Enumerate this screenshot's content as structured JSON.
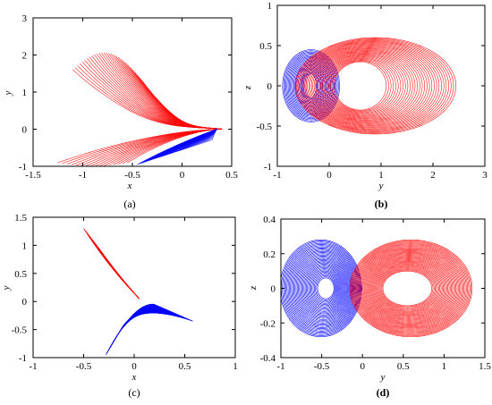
{
  "colors": {
    "red_series": "#ff0000",
    "blue_series": "#0000ff",
    "axis": "#000000"
  },
  "chart_data": [
    {
      "id": "a",
      "type": "line",
      "panel_label": "(a)",
      "xlabel": "x",
      "ylabel": "y",
      "xlim": [
        -1.5,
        0.5
      ],
      "ylim": [
        -1,
        3
      ],
      "xticks": [
        -1.5,
        -1,
        -0.5,
        0,
        0.5
      ],
      "yticks": [
        -1,
        0,
        1,
        2,
        3
      ],
      "xtick_labels": [
        "-1.5",
        "-1",
        "-0.5",
        "0",
        "0.5"
      ],
      "ytick_labels": [
        "-1",
        "0",
        "1",
        "2",
        "3"
      ],
      "grid": false,
      "series": [
        {
          "color": "red",
          "values": {
            "start_x_range": [
              -1.1,
              -0.4
            ],
            "start_y_top": [
              1.6,
              2.2
            ],
            "end_point": [
              0.4,
              0.0
            ],
            "lower_fan_y_min": -1.0
          }
        },
        {
          "color": "blue",
          "values": {
            "x_range": [
              -0.45,
              0.4
            ],
            "y_range": [
              -1.0,
              0.0
            ]
          }
        }
      ]
    },
    {
      "id": "b",
      "type": "line",
      "panel_label": "(b)",
      "xlabel": "y",
      "ylabel": "z",
      "xlim": [
        -1,
        3
      ],
      "ylim": [
        -1,
        1
      ],
      "xticks": [
        -1,
        0,
        1,
        2,
        3
      ],
      "yticks": [
        -1,
        -0.5,
        0,
        0.5,
        1
      ],
      "xtick_labels": [
        "-1",
        "0",
        "1",
        "2",
        "3"
      ],
      "ytick_labels": [
        "-1",
        "-0.5",
        "0",
        "0.5",
        "1"
      ],
      "grid": false,
      "series": [
        {
          "color": "blue",
          "values": {
            "center": [
              -0.35,
              0.0
            ],
            "outer_radius": [
              0.55,
              0.45
            ],
            "inner_radius": [
              0.1,
              0.15
            ]
          }
        },
        {
          "color": "red",
          "values": {
            "center": [
              0.6,
              0.0
            ],
            "outer_radius": [
              1.55,
              0.6
            ],
            "inner_radius": [
              0.5,
              0.3
            ]
          }
        }
      ]
    },
    {
      "id": "c",
      "type": "line",
      "panel_label": "(c)",
      "xlabel": "x",
      "ylabel": "y",
      "xlim": [
        -1,
        1
      ],
      "ylim": [
        -1,
        1.5
      ],
      "xticks": [
        -1,
        -0.5,
        0,
        0.5,
        1
      ],
      "yticks": [
        -1,
        -0.5,
        0,
        0.5,
        1,
        1.5
      ],
      "xtick_labels": [
        "-1",
        "-0.5",
        "0",
        "0.5",
        "1"
      ],
      "ytick_labels": [
        "-1",
        "-0.5",
        "0",
        "0.5",
        "1",
        "1.5"
      ],
      "grid": false,
      "series": [
        {
          "color": "red",
          "values": {
            "start_x_range": [
              -0.5,
              -0.4
            ],
            "start_y": [
              1.3,
              1.0
            ],
            "end_point": [
              0.05,
              0.05
            ]
          }
        },
        {
          "color": "blue",
          "values": {
            "x_range": [
              -0.3,
              0.6
            ],
            "y_range": [
              -0.95,
              0.0
            ]
          }
        }
      ]
    },
    {
      "id": "d",
      "type": "line",
      "panel_label": "(d)",
      "xlabel": "y",
      "ylabel": "z",
      "xlim": [
        -1,
        1.5
      ],
      "ylim": [
        -0.4,
        0.4
      ],
      "xticks": [
        -1,
        -0.5,
        0,
        0.5,
        1,
        1.5
      ],
      "yticks": [
        -0.4,
        -0.2,
        0,
        0.2,
        0.4
      ],
      "xtick_labels": [
        "-1",
        "-0.5",
        "0",
        "0.5",
        "1",
        "1.5"
      ],
      "ytick_labels": [
        "-0.4",
        "-0.2",
        "0",
        "0.2",
        "0.4"
      ],
      "grid": false,
      "series": [
        {
          "color": "blue",
          "values": {
            "center": [
              -0.45,
              0.0
            ],
            "outer_radius": [
              0.5,
              0.28
            ],
            "inner_radius": [
              0.1,
              0.06
            ]
          }
        },
        {
          "color": "red",
          "values": {
            "center": [
              0.55,
              0.0
            ],
            "outer_radius": [
              0.75,
              0.28
            ],
            "inner_radius": [
              0.3,
              0.1
            ]
          }
        }
      ]
    }
  ]
}
